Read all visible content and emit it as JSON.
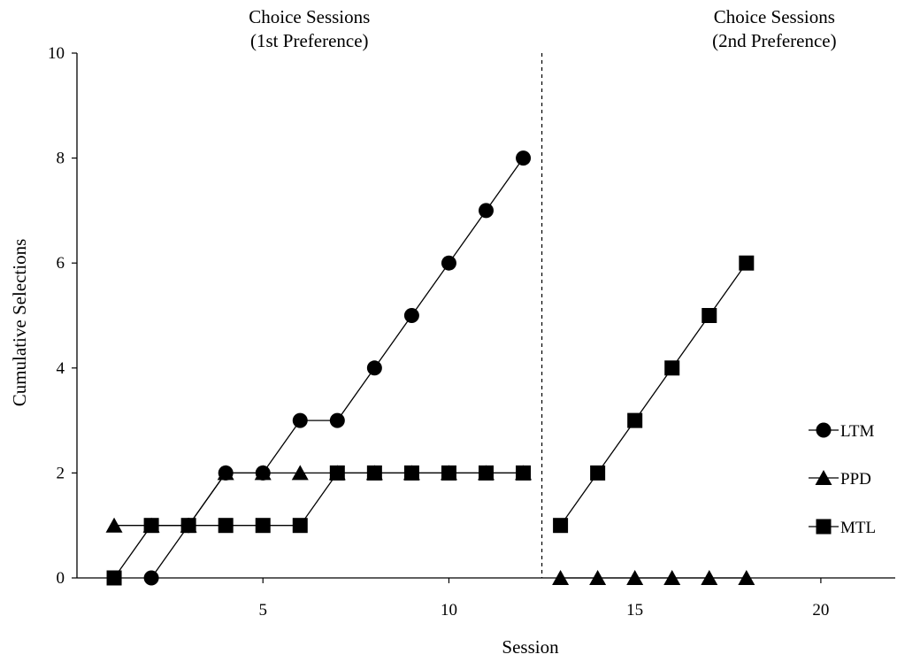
{
  "chart_data": {
    "type": "line",
    "xlabel": "Session",
    "ylabel": "Cumulative Selections",
    "xlim": [
      0,
      22
    ],
    "ylim": [
      0,
      10
    ],
    "xticks": [
      5,
      10,
      15,
      20
    ],
    "yticks": [
      0,
      2,
      4,
      6,
      8,
      10
    ],
    "phase_line_x": 12.5,
    "phase_titles": [
      {
        "lines": [
          "Choice Sessions",
          "(1st Preference)"
        ],
        "x_center": 6.25
      },
      {
        "lines": [
          "Choice Sessions",
          "(2nd Preference)"
        ],
        "x_center": 18.75
      }
    ],
    "legend_position": "right",
    "series": [
      {
        "name": "LTM",
        "marker": "circle",
        "segments": [
          {
            "x": [
              2,
              3,
              4,
              5,
              6,
              7,
              8,
              9,
              10,
              11,
              12
            ],
            "y": [
              0,
              1,
              2,
              2,
              3,
              3,
              4,
              5,
              6,
              7,
              8
            ]
          }
        ]
      },
      {
        "name": "PPD",
        "marker": "triangle",
        "segments": [
          {
            "x": [
              1,
              2,
              3,
              4,
              5,
              6,
              7,
              8,
              9,
              10,
              11,
              12
            ],
            "y": [
              1,
              1,
              1,
              2,
              2,
              2,
              2,
              2,
              2,
              2,
              2,
              2
            ]
          },
          {
            "x": [
              13,
              14,
              15,
              16,
              17,
              18
            ],
            "y": [
              0,
              0,
              0,
              0,
              0,
              0
            ]
          }
        ]
      },
      {
        "name": "MTL",
        "marker": "square",
        "segments": [
          {
            "x": [
              1,
              2,
              3,
              4,
              5,
              6,
              7,
              8,
              9,
              10,
              11,
              12
            ],
            "y": [
              0,
              1,
              1,
              1,
              1,
              1,
              2,
              2,
              2,
              2,
              2,
              2
            ]
          },
          {
            "x": [
              13,
              14,
              15,
              16,
              17,
              18
            ],
            "y": [
              1,
              2,
              3,
              4,
              5,
              6
            ]
          }
        ]
      }
    ]
  }
}
